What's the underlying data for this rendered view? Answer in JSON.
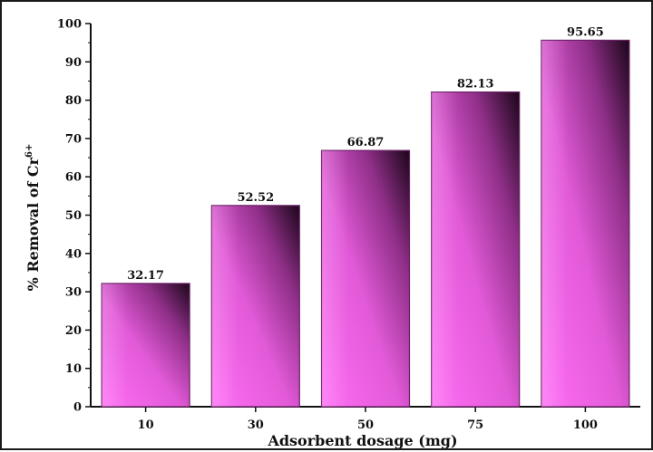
{
  "chart_data": {
    "type": "bar",
    "title": "",
    "xlabel": "Adsorbent dosage (mg)",
    "ylabel": {
      "main": "% Removal of Cr",
      "superscript": "6+"
    },
    "categories": [
      "10",
      "30",
      "50",
      "75",
      "100"
    ],
    "series": [
      {
        "values": [
          32.17,
          52.52,
          66.87,
          82.13,
          95.65
        ],
        "data_labels": [
          "32.17",
          "52.52",
          "66.87",
          "82.13",
          "95.65"
        ]
      }
    ],
    "ylim": [
      0,
      100
    ],
    "yticks": [
      "0",
      "10",
      "20",
      "30",
      "40",
      "50",
      "60",
      "70",
      "80",
      "90",
      "100"
    ],
    "grid": false,
    "legend": "none",
    "colors": {
      "bar_light": "#ff6ef5",
      "bar_mid": "#c94bbf",
      "bar_dark": "#1a0618",
      "bar_edge": "#6b1f66",
      "axis": "#111111"
    }
  }
}
